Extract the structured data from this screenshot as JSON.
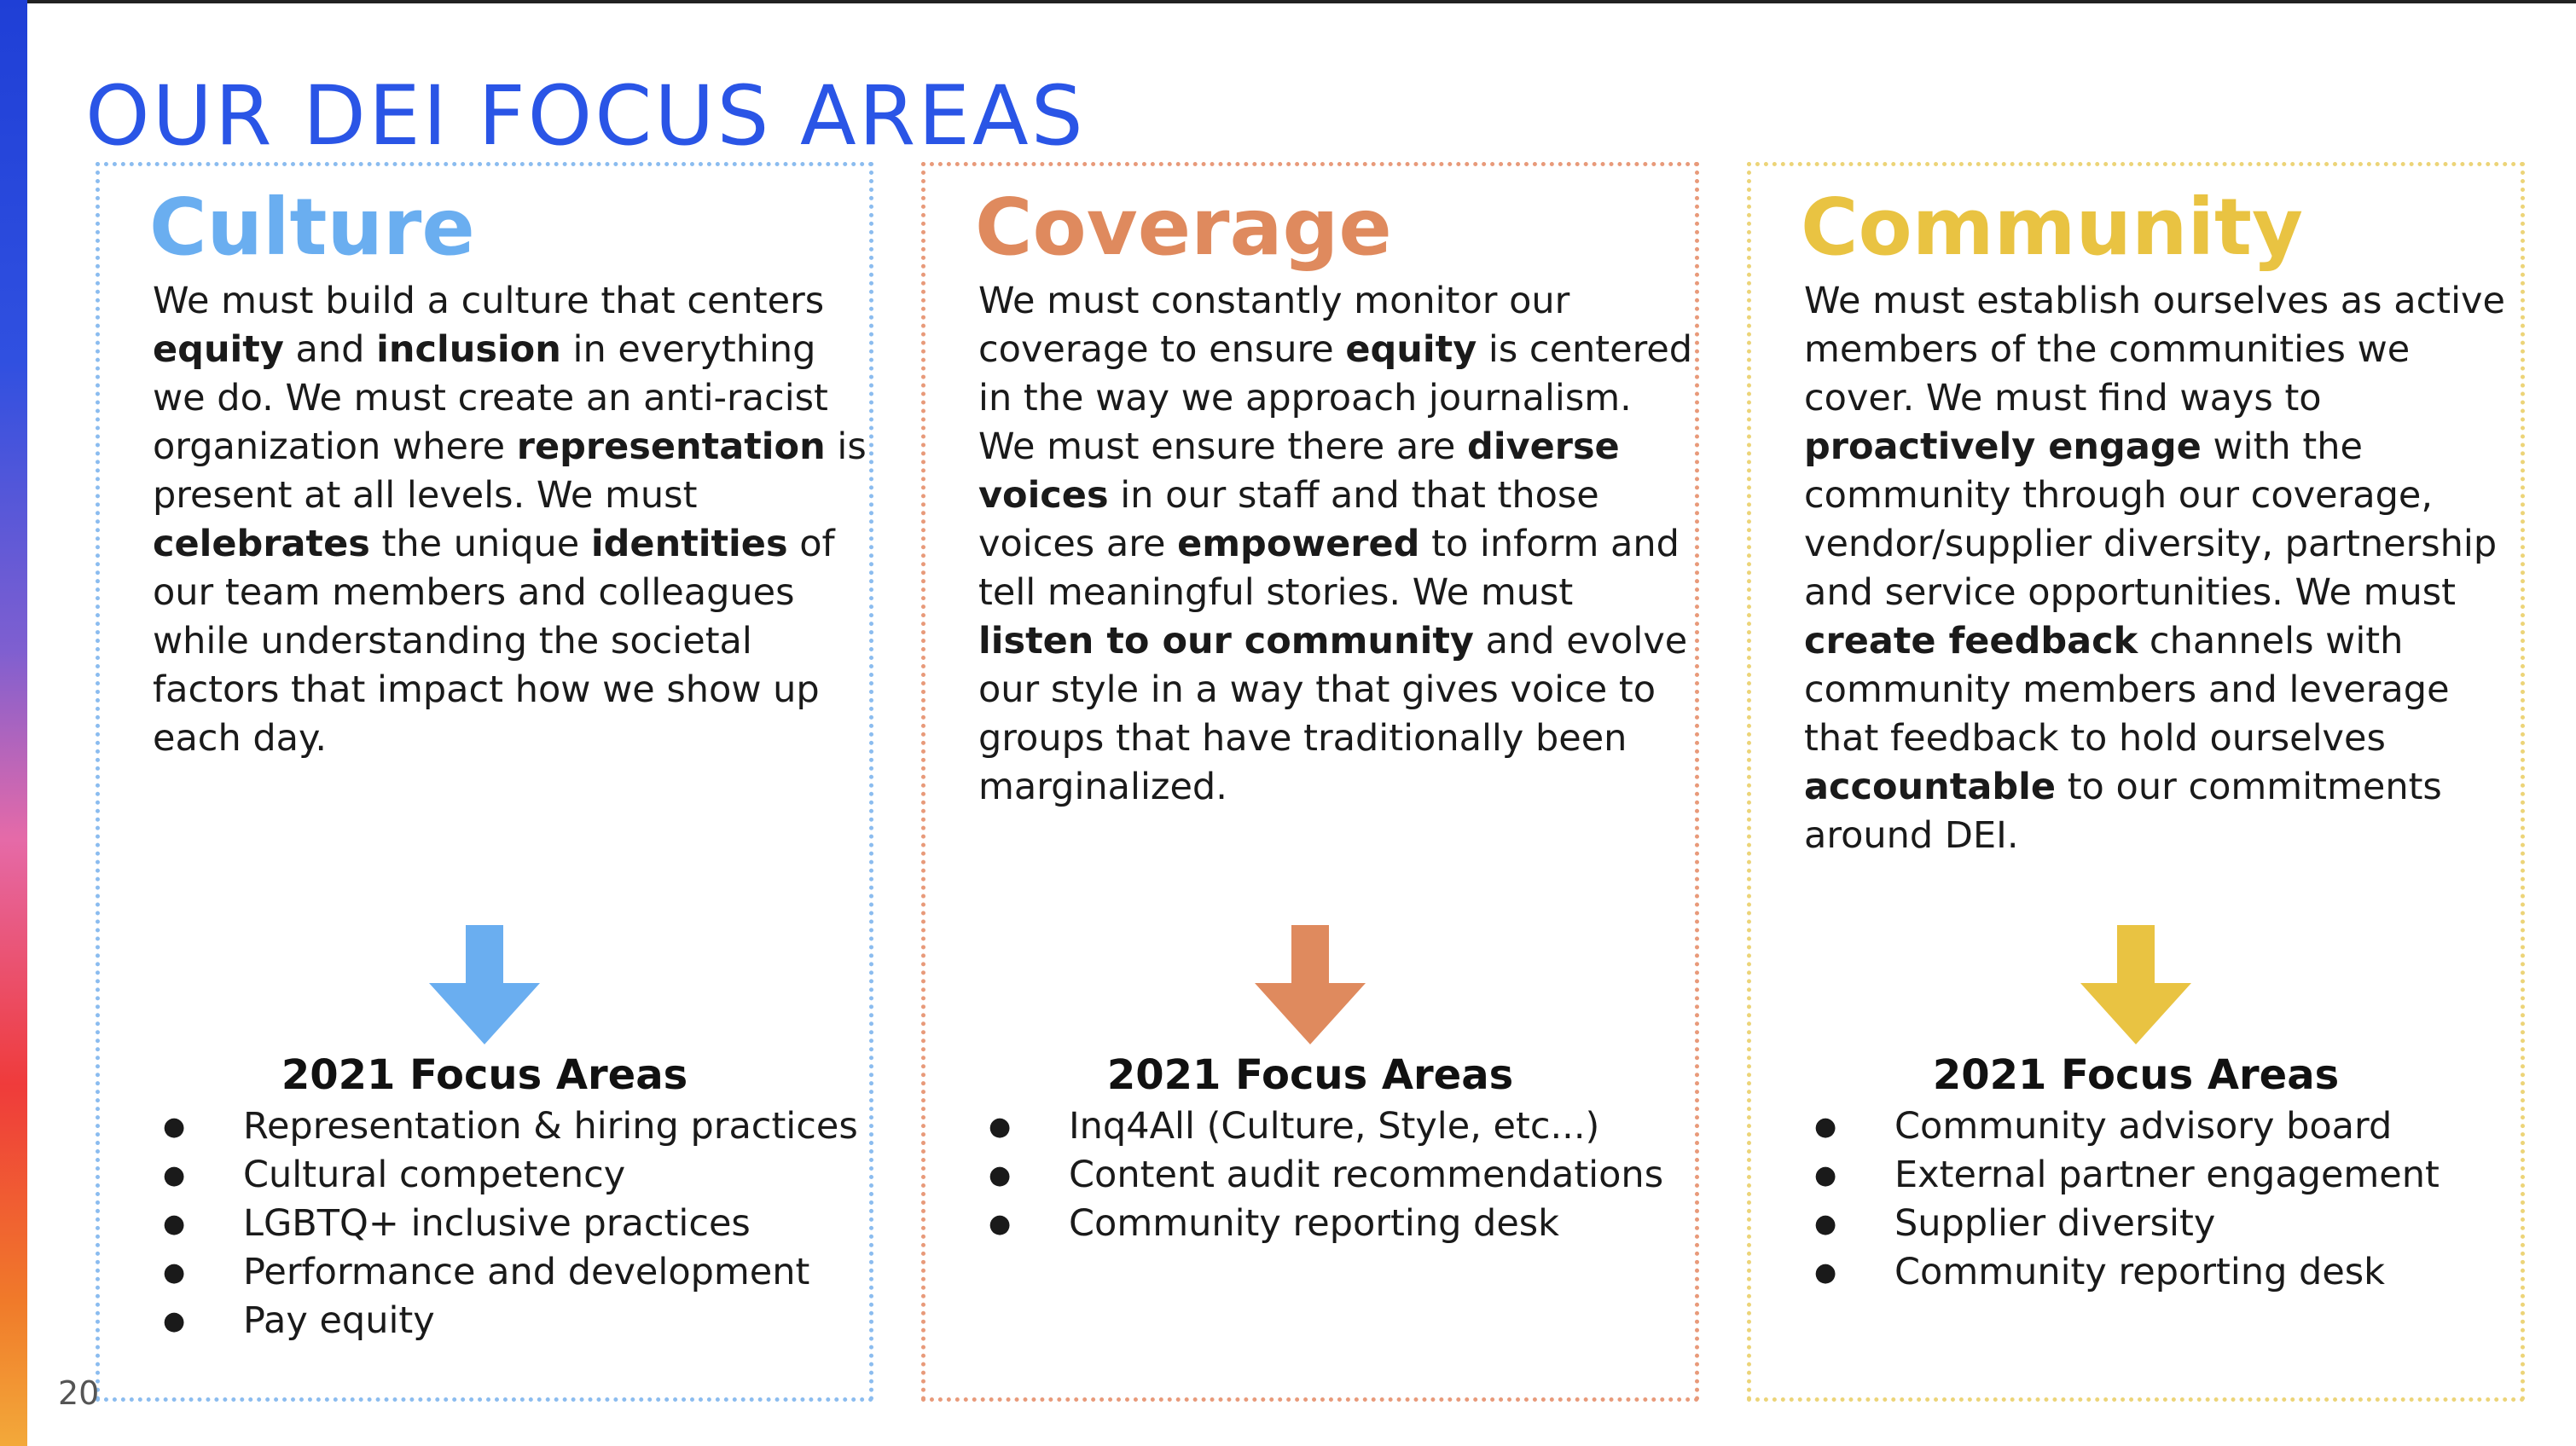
{
  "slide": {
    "title": "OUR DEI FOCUS AREAS",
    "page_number": "20"
  },
  "colors": {
    "title": "#2a55e6",
    "culture": "#6aaef0",
    "coverage": "#df8a5e",
    "community": "#e9c342"
  },
  "panels": [
    {
      "heading": "Culture",
      "body_segments": [
        {
          "text": "We must build a culture that centers ",
          "bold": false
        },
        {
          "text": "equity",
          "bold": true
        },
        {
          "text": " and ",
          "bold": false
        },
        {
          "text": "inclusion",
          "bold": true
        },
        {
          "text": " in everything we do. We must create an anti-racist organization where ",
          "bold": false
        },
        {
          "text": "representation",
          "bold": true
        },
        {
          "text": " is present at all levels. We must ",
          "bold": false
        },
        {
          "text": "celebrates",
          "bold": true
        },
        {
          "text": " the unique ",
          "bold": false
        },
        {
          "text": "identities",
          "bold": true
        },
        {
          "text": " of our team members and colleagues while understanding the societal factors that impact how we show up each day.",
          "bold": false
        }
      ],
      "focus_title": "2021 Focus Areas",
      "focus_items": [
        "Representation & hiring practices",
        "Cultural competency",
        "LGBTQ+ inclusive practices",
        "Performance and development",
        "Pay equity"
      ]
    },
    {
      "heading": "Coverage",
      "body_segments": [
        {
          "text": "We must constantly monitor our coverage to ensure ",
          "bold": false
        },
        {
          "text": "equity",
          "bold": true
        },
        {
          "text": " is centered in the way we approach journalism. We must ensure there are ",
          "bold": false
        },
        {
          "text": "diverse voices",
          "bold": true
        },
        {
          "text": " in our staff and that those voices are ",
          "bold": false
        },
        {
          "text": "empowered",
          "bold": true
        },
        {
          "text": " to inform and tell meaningful stories. We must ",
          "bold": false
        },
        {
          "text": "listen to our community",
          "bold": true
        },
        {
          "text": " and evolve our style in a way that gives voice to groups that have traditionally been marginalized.",
          "bold": false
        }
      ],
      "focus_title": "2021 Focus Areas",
      "focus_items": [
        "Inq4All (Culture, Style, etc...)",
        "Content audit recommendations",
        "Community reporting desk"
      ]
    },
    {
      "heading": "Community",
      "body_segments": [
        {
          "text": "We must establish ourselves as active members of the communities we cover. We must find ways to ",
          "bold": false
        },
        {
          "text": "proactively engage",
          "bold": true
        },
        {
          "text": " with the community through our coverage, vendor/supplier diversity, partnership and service opportunities. We must ",
          "bold": false
        },
        {
          "text": "create feedback",
          "bold": true
        },
        {
          "text": " channels with community members and leverage that feedback to hold ourselves ",
          "bold": false
        },
        {
          "text": "accountable",
          "bold": true
        },
        {
          "text": " to our commitments around DEI.",
          "bold": false
        }
      ],
      "focus_title": "2021 Focus Areas",
      "focus_items": [
        "Community advisory board",
        "External partner engagement",
        "Supplier diversity",
        "Community reporting desk"
      ]
    }
  ]
}
